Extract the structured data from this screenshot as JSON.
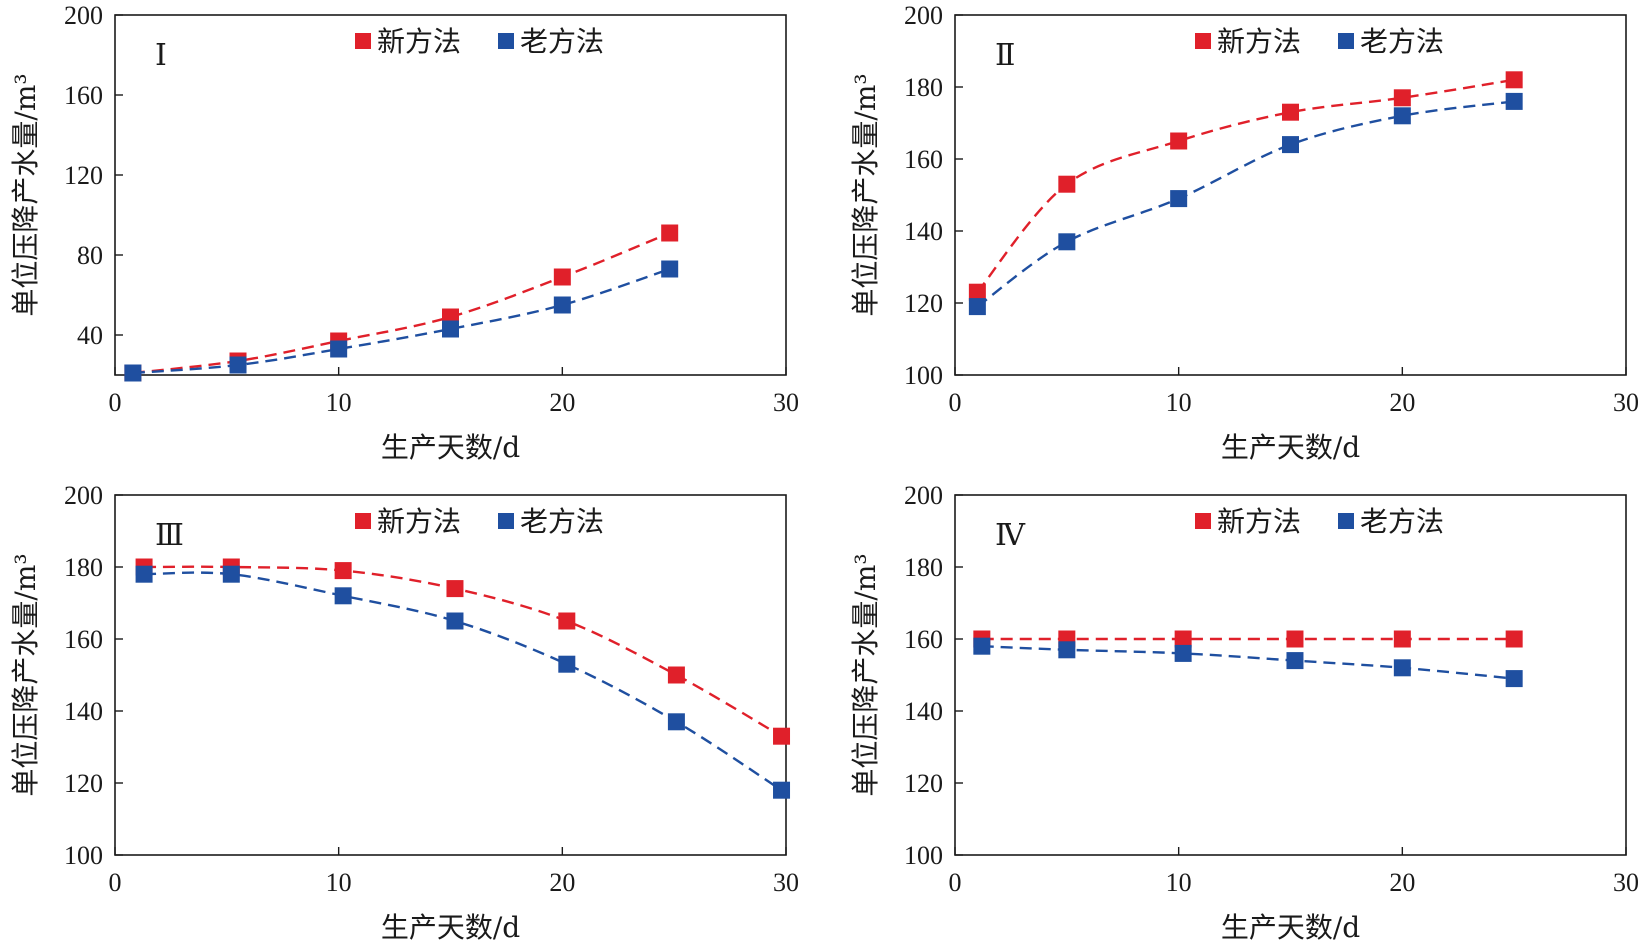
{
  "colors": {
    "new_method": "#e0202a",
    "old_method": "#1f4fa0",
    "axis": "#1a1a1a"
  },
  "chart_data": [
    {
      "type": "line",
      "panel_label": "Ⅰ",
      "xlabel": "生产天数/d",
      "ylabel": "单位压降产水量/m³",
      "xlim": [
        0,
        30
      ],
      "ylim": [
        20,
        200
      ],
      "xticks": [
        0,
        10,
        20,
        30
      ],
      "yticks": [
        40,
        80,
        120,
        160,
        200
      ],
      "legend_placement": "top",
      "series": [
        {
          "name": "新方法",
          "color_key": "new_method",
          "x": [
            0.8,
            5.5,
            10,
            15,
            20,
            24.8
          ],
          "y": [
            21,
            27,
            37,
            49,
            69,
            91
          ]
        },
        {
          "name": "老方法",
          "color_key": "old_method",
          "x": [
            0.8,
            5.5,
            10,
            15,
            20,
            24.8
          ],
          "y": [
            21,
            25,
            33,
            43,
            55,
            73
          ]
        }
      ]
    },
    {
      "type": "line",
      "panel_label": "Ⅱ",
      "xlabel": "生产天数/d",
      "ylabel": "单位压降产水量/m³",
      "xlim": [
        0,
        30
      ],
      "ylim": [
        100,
        200
      ],
      "xticks": [
        0,
        10,
        20,
        30
      ],
      "yticks": [
        100,
        120,
        140,
        160,
        180,
        200
      ],
      "legend_placement": "top",
      "series": [
        {
          "name": "新方法",
          "color_key": "new_method",
          "x": [
            1,
            5,
            10,
            15,
            20,
            25
          ],
          "y": [
            123,
            153,
            165,
            173,
            177,
            182
          ]
        },
        {
          "name": "老方法",
          "color_key": "old_method",
          "x": [
            1,
            5,
            10,
            15,
            20,
            25
          ],
          "y": [
            119,
            137,
            149,
            164,
            172,
            176
          ]
        }
      ]
    },
    {
      "type": "line",
      "panel_label": "Ⅲ",
      "xlabel": "生产天数/d",
      "ylabel": "单位压降产水量/m³",
      "xlim": [
        0,
        30
      ],
      "ylim": [
        100,
        200
      ],
      "xticks": [
        0,
        10,
        20,
        30
      ],
      "yticks": [
        100,
        120,
        140,
        160,
        180,
        200
      ],
      "legend_placement": "top",
      "series": [
        {
          "name": "新方法",
          "color_key": "new_method",
          "x": [
            1.3,
            5.2,
            10.2,
            15.2,
            20.2,
            25.1,
            29.8
          ],
          "y": [
            180,
            180,
            179,
            174,
            165,
            150,
            133
          ]
        },
        {
          "name": "老方法",
          "color_key": "old_method",
          "x": [
            1.3,
            5.2,
            10.2,
            15.2,
            20.2,
            25.1,
            29.8
          ],
          "y": [
            178,
            178,
            172,
            165,
            153,
            137,
            118
          ]
        }
      ]
    },
    {
      "type": "line",
      "panel_label": "Ⅳ",
      "xlabel": "生产天数/d",
      "ylabel": "单位压降产水量/m³",
      "xlim": [
        0,
        30
      ],
      "ylim": [
        100,
        200
      ],
      "xticks": [
        0,
        10,
        20,
        30
      ],
      "yticks": [
        100,
        120,
        140,
        160,
        180,
        200
      ],
      "legend_placement": "top",
      "series": [
        {
          "name": "新方法",
          "color_key": "new_method",
          "x": [
            1.2,
            5,
            10.2,
            15.2,
            20,
            25
          ],
          "y": [
            160,
            160,
            160,
            160,
            160,
            160
          ]
        },
        {
          "name": "老方法",
          "color_key": "old_method",
          "x": [
            1.2,
            5,
            10.2,
            15.2,
            20,
            25
          ],
          "y": [
            158,
            157,
            156,
            154,
            152,
            149
          ]
        }
      ]
    }
  ]
}
